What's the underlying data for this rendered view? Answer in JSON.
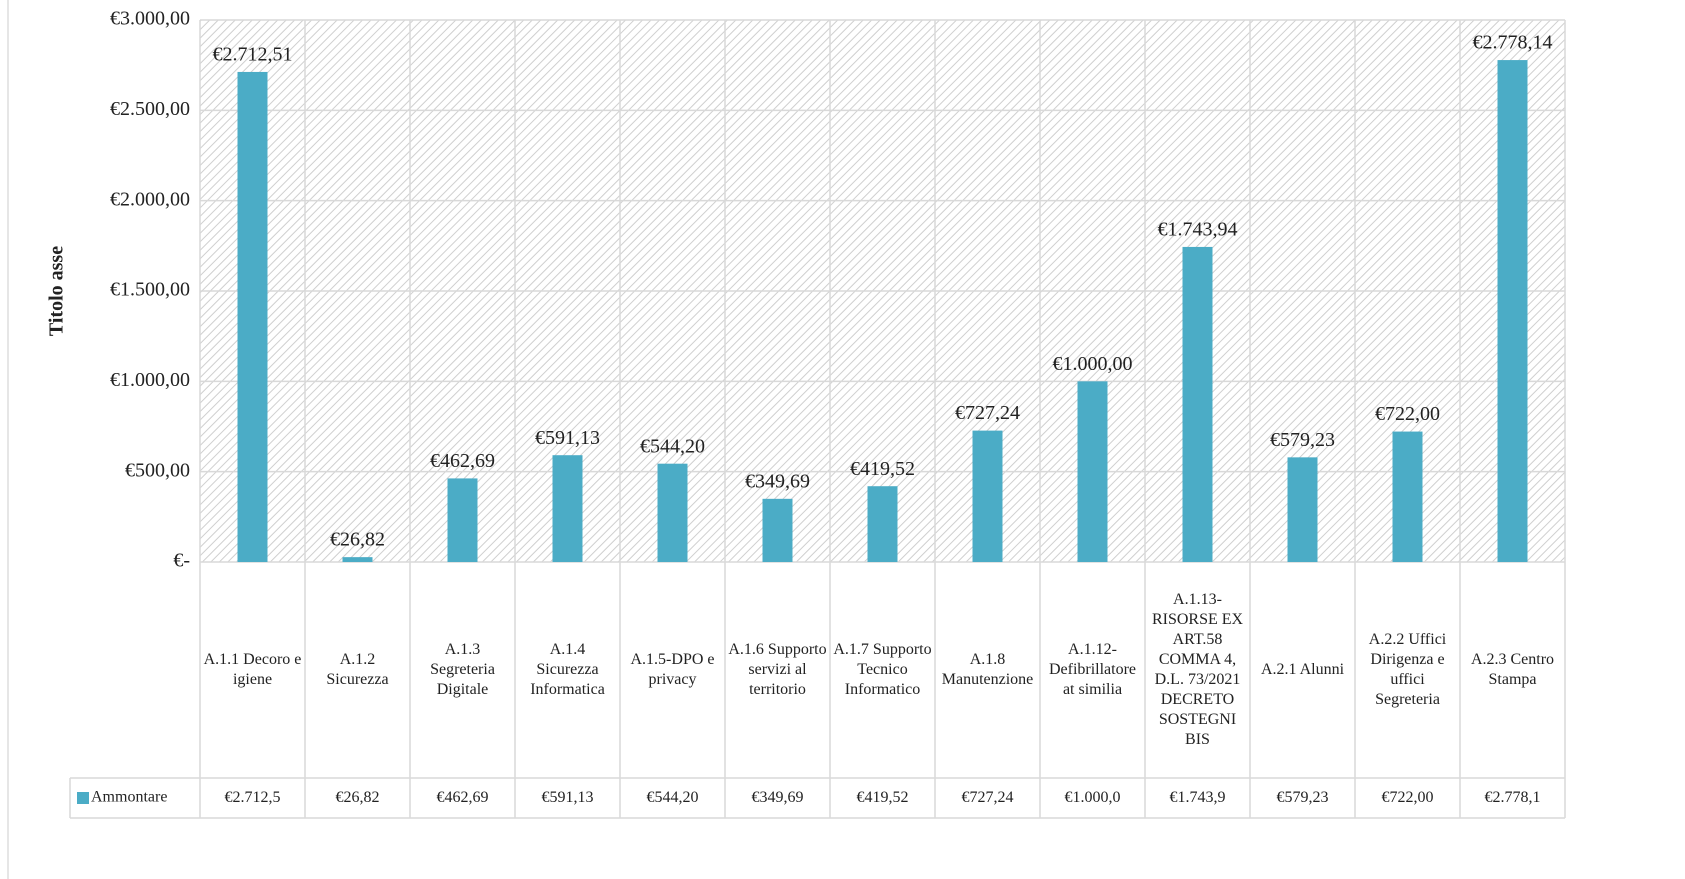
{
  "chart_data": {
    "type": "bar",
    "y_axis_label": "Titolo asse",
    "categories": [
      "A.1.1 Decoro e igiene",
      "A.1.2 Sicurezza",
      "A.1.3 Segreteria Digitale",
      "A.1.4 Sicurezza Informatica",
      "A.1.5-DPO e privacy",
      "A.1.6 Supporto servizi al territorio",
      "A.1.7 Supporto Tecnico Informatico",
      "A.1.8 Manutenzione",
      "A.1.12- Defibrillatore at similia",
      "A.1.13- RISORSE EX ART.58 COMMA 4, D.L. 73/2021 DECRETO SOSTEGNI BIS",
      "A.2.1 Alunni",
      "A.2.2 Uffici Dirigenza e uffici Segreteria",
      "A.2.3 Centro Stampa"
    ],
    "series": [
      {
        "name": "Ammontare",
        "color": "#4bacc6",
        "values": [
          2712.51,
          26.82,
          462.69,
          591.13,
          544.2,
          349.69,
          419.52,
          727.24,
          1000.0,
          1743.94,
          579.23,
          722.0,
          2778.14
        ],
        "value_labels": [
          "€2.712,51",
          "€26,82",
          "€462,69",
          "€591,13",
          "€544,20",
          "€349,69",
          "€419,52",
          "€727,24",
          "€1.000,00",
          "€1.743,94",
          "€579,23",
          "€722,00",
          "€2.778,14"
        ],
        "table_labels": [
          "€2.712,5",
          "€26,82",
          "€462,69",
          "€591,13",
          "€544,20",
          "€349,69",
          "€419,52",
          "€727,24",
          "€1.000,0",
          "€1.743,9",
          "€579,23",
          "€722,00",
          "€2.778,1"
        ]
      }
    ],
    "ylim": [
      0,
      3000
    ],
    "yticks": [
      {
        "value": 0,
        "label": "€-"
      },
      {
        "value": 500,
        "label": "€500,00"
      },
      {
        "value": 1000,
        "label": "€1.000,00"
      },
      {
        "value": 1500,
        "label": "€1.500,00"
      },
      {
        "value": 2000,
        "label": "€2.000,00"
      },
      {
        "value": 2500,
        "label": "€2.500,00"
      },
      {
        "value": 3000,
        "label": "€3.000,00"
      }
    ],
    "grid": true
  }
}
